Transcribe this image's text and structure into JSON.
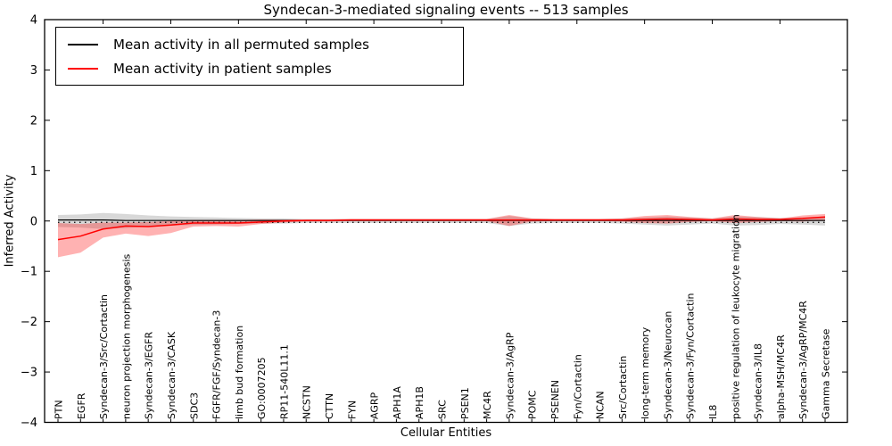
{
  "chart_data": {
    "type": "line",
    "title": "Syndecan-3-mediated signaling events -- 513 samples",
    "xlabel": "Cellular Entities",
    "ylabel": "Inferred Activity",
    "ylim": [
      -4,
      4
    ],
    "yticks": [
      4,
      3,
      2,
      1,
      0,
      -1,
      -2,
      -3,
      -4
    ],
    "grid": false,
    "legend_position": "upper left",
    "zero_reference_line": true,
    "categories": [
      "PTN",
      "EGFR",
      "Syndecan-3/Src/Cortactin",
      "neuron projection morphogenesis",
      "Syndecan-3/EGFR",
      "Syndecan-3/CASK",
      "SDC3",
      "FGFR/FGF/Syndecan-3",
      "limb bud formation",
      "GO:0007205",
      "RP11-540L11.1",
      "NCSTN",
      "CTTN",
      "FYN",
      "AGRP",
      "APH1A",
      "APH1B",
      "SRC",
      "PSEN1",
      "MC4R",
      "Syndecan-3/AgRP",
      "POMC",
      "PSENEN",
      "Fyn/Cortactin",
      "NCAN",
      "Src/Cortactin",
      "long-term memory",
      "Syndecan-3/Neurocan",
      "Syndecan-3/Fyn/Cortactin",
      "IL8",
      "positive regulation of leukocyte migration",
      "Syndecan-3/IL8",
      "alpha-MSH/MC4R",
      "Syndecan-3/AgRP/MC4R",
      "Gamma Secretase"
    ],
    "series": [
      {
        "name": "Mean activity in all permuted samples",
        "color": "#000000",
        "band_color": "#909090",
        "values": [
          0.02,
          0.02,
          0.02,
          0.01,
          0.01,
          0.01,
          0.01,
          0.01,
          0.01,
          0.01,
          0.01,
          0.01,
          0.01,
          0.01,
          0.01,
          0.01,
          0.01,
          0.01,
          0.01,
          0.01,
          0.01,
          0.01,
          0.01,
          0.01,
          0.01,
          0.01,
          0.01,
          0.01,
          0.01,
          0.01,
          0.01,
          0.01,
          0.01,
          0.01,
          0.01
        ],
        "band_upper": [
          0.12,
          0.13,
          0.16,
          0.14,
          0.11,
          0.09,
          0.08,
          0.07,
          0.06,
          0.05,
          0.05,
          0.04,
          0.04,
          0.04,
          0.04,
          0.04,
          0.04,
          0.04,
          0.04,
          0.04,
          0.1,
          0.05,
          0.04,
          0.04,
          0.04,
          0.05,
          0.07,
          0.09,
          0.07,
          0.05,
          0.09,
          0.08,
          0.06,
          0.07,
          0.09
        ],
        "band_lower": [
          -0.12,
          -0.13,
          -0.16,
          -0.14,
          -0.11,
          -0.09,
          -0.08,
          -0.07,
          -0.06,
          -0.05,
          -0.05,
          -0.04,
          -0.04,
          -0.04,
          -0.04,
          -0.04,
          -0.04,
          -0.04,
          -0.04,
          -0.04,
          -0.1,
          -0.05,
          -0.04,
          -0.04,
          -0.04,
          -0.05,
          -0.07,
          -0.09,
          -0.07,
          -0.05,
          -0.09,
          -0.08,
          -0.06,
          -0.07,
          -0.09
        ]
      },
      {
        "name": "Mean activity in patient samples",
        "color": "#ff0000",
        "band_color": "#ff0000",
        "values": [
          -0.37,
          -0.3,
          -0.16,
          -0.1,
          -0.11,
          -0.08,
          -0.04,
          -0.04,
          -0.04,
          -0.02,
          0.0,
          0.01,
          0.01,
          0.02,
          0.02,
          0.02,
          0.02,
          0.02,
          0.02,
          0.02,
          0.02,
          0.02,
          0.02,
          0.02,
          0.02,
          0.02,
          0.03,
          0.04,
          0.03,
          0.02,
          0.04,
          0.03,
          0.03,
          0.05,
          0.08
        ],
        "band_upper": [
          -0.04,
          -0.06,
          -0.03,
          -0.03,
          -0.02,
          0.0,
          0.02,
          0.02,
          0.02,
          0.03,
          0.03,
          0.03,
          0.03,
          0.04,
          0.04,
          0.04,
          0.04,
          0.04,
          0.04,
          0.04,
          0.12,
          0.05,
          0.04,
          0.04,
          0.04,
          0.05,
          0.1,
          0.12,
          0.08,
          0.05,
          0.12,
          0.08,
          0.05,
          0.11,
          0.14
        ],
        "band_lower": [
          -0.72,
          -0.63,
          -0.33,
          -0.25,
          -0.3,
          -0.24,
          -0.11,
          -0.1,
          -0.11,
          -0.06,
          -0.03,
          -0.01,
          -0.01,
          0.0,
          0.0,
          0.0,
          0.0,
          0.0,
          0.0,
          0.0,
          -0.1,
          -0.01,
          0.0,
          0.0,
          0.0,
          -0.01,
          -0.04,
          -0.05,
          -0.02,
          0.0,
          -0.04,
          -0.02,
          0.0,
          -0.01,
          0.02
        ]
      }
    ]
  }
}
